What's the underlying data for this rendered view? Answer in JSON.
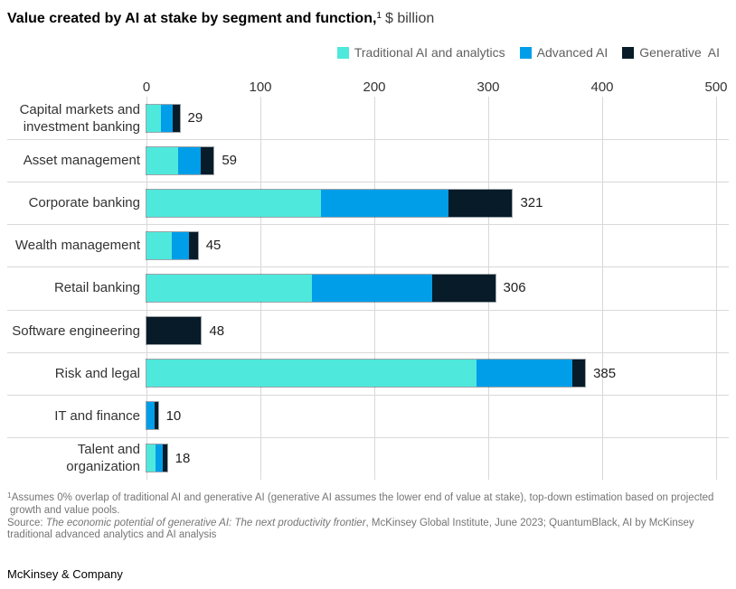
{
  "page": {
    "title": {
      "main": "Value created by AI at stake by segment and function,",
      "footnote_marker": "1",
      "unit": "$ billion"
    },
    "footer": "McKinsey & Company"
  },
  "legend": {
    "items": [
      {
        "key": "traditional",
        "label": "Traditional AI and analytics",
        "color": "#4FE8DC"
      },
      {
        "key": "advanced",
        "label": "Advanced AI",
        "color": "#009EE9"
      },
      {
        "key": "generative",
        "label": "Generative  AI",
        "color": "#081B28"
      }
    ]
  },
  "chart_data": {
    "type": "bar",
    "orientation": "horizontal",
    "title": "Value created by AI at stake by segment and function, $ billion",
    "xlabel": "",
    "ylabel": "",
    "xlim": [
      0,
      500
    ],
    "x_ticks": [
      0,
      100,
      200,
      300,
      400,
      500
    ],
    "grid": "vertical",
    "legend_position": "top-right",
    "categories": [
      "Capital markets and\ninvestment banking",
      "Asset management",
      "Corporate banking",
      "Wealth management",
      "Retail banking",
      "Software engineering",
      "Risk and legal",
      "IT and finance",
      "Talent and\norganization"
    ],
    "series": [
      {
        "key": "traditional",
        "name": "Traditional AI and analytics",
        "color": "#4FE8DC",
        "values": [
          13,
          28,
          153,
          22,
          145,
          0,
          290,
          0,
          8
        ]
      },
      {
        "key": "advanced",
        "name": "Advanced AI",
        "color": "#009EE9",
        "values": [
          10,
          20,
          112,
          15,
          106,
          0,
          84,
          7,
          6
        ]
      },
      {
        "key": "generative",
        "name": "Generative AI",
        "color": "#081B28",
        "values": [
          6,
          11,
          56,
          8,
          55,
          48,
          11,
          3,
          4
        ]
      }
    ],
    "totals": [
      29,
      59,
      321,
      45,
      306,
      48,
      385,
      10,
      18
    ]
  },
  "footnotes": {
    "marker": "1",
    "line1": "Assumes 0% overlap of traditional AI and generative AI (generative AI assumes the lower end of value at stake), top-down estimation based on projected",
    "line2": "growth and value pools.",
    "source_prefix": "Source: ",
    "source_italic": "The economic potential of generative AI: The next productivity frontier",
    "source_rest": ", McKinsey Global Institute, June 2023; QuantumBlack, AI by McKinsey",
    "source_line2": "traditional advanced analytics and AI analysis"
  },
  "colors": {
    "grid": "#D8D8D8",
    "separator": "#D9D9D9",
    "text": "#333333",
    "muted": "#757575"
  }
}
